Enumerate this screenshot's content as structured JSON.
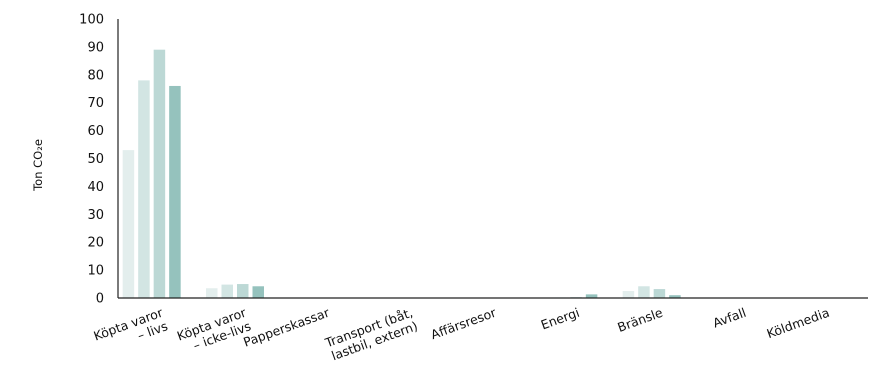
{
  "chart_data": {
    "type": "bar",
    "title": "",
    "xlabel": "",
    "ylabel": "Ton CO₂e",
    "ylim": [
      0,
      100
    ],
    "yticks": [
      0,
      10,
      20,
      30,
      40,
      50,
      60,
      70,
      80,
      90,
      100
    ],
    "grid": false,
    "legend": "none",
    "categories": [
      [
        "Köpta varor",
        "– livs"
      ],
      [
        "Köpta varor",
        "– icke-livs"
      ],
      [
        "Papperskassar"
      ],
      [
        "Transport (båt,",
        "lastbil, extern)"
      ],
      [
        "Affärsresor"
      ],
      [
        "Energi"
      ],
      [
        "Bränsle"
      ],
      [
        "Avfall"
      ],
      [
        "Köldmedia"
      ]
    ],
    "series": [
      {
        "color": "#e3eeed",
        "values": [
          53,
          3.5,
          0,
          0,
          0,
          0.1,
          2.5,
          0,
          0
        ]
      },
      {
        "color": "#d2e5e3",
        "values": [
          78,
          4.8,
          0,
          0,
          0,
          0.2,
          4.2,
          0,
          0
        ]
      },
      {
        "color": "#bcd8d5",
        "values": [
          89,
          5.0,
          0,
          0.1,
          0,
          0.3,
          3.2,
          0,
          0
        ]
      },
      {
        "color": "#95c2bd",
        "values": [
          76,
          4.2,
          0,
          0.1,
          0,
          1.3,
          1.0,
          0,
          0
        ]
      }
    ]
  }
}
